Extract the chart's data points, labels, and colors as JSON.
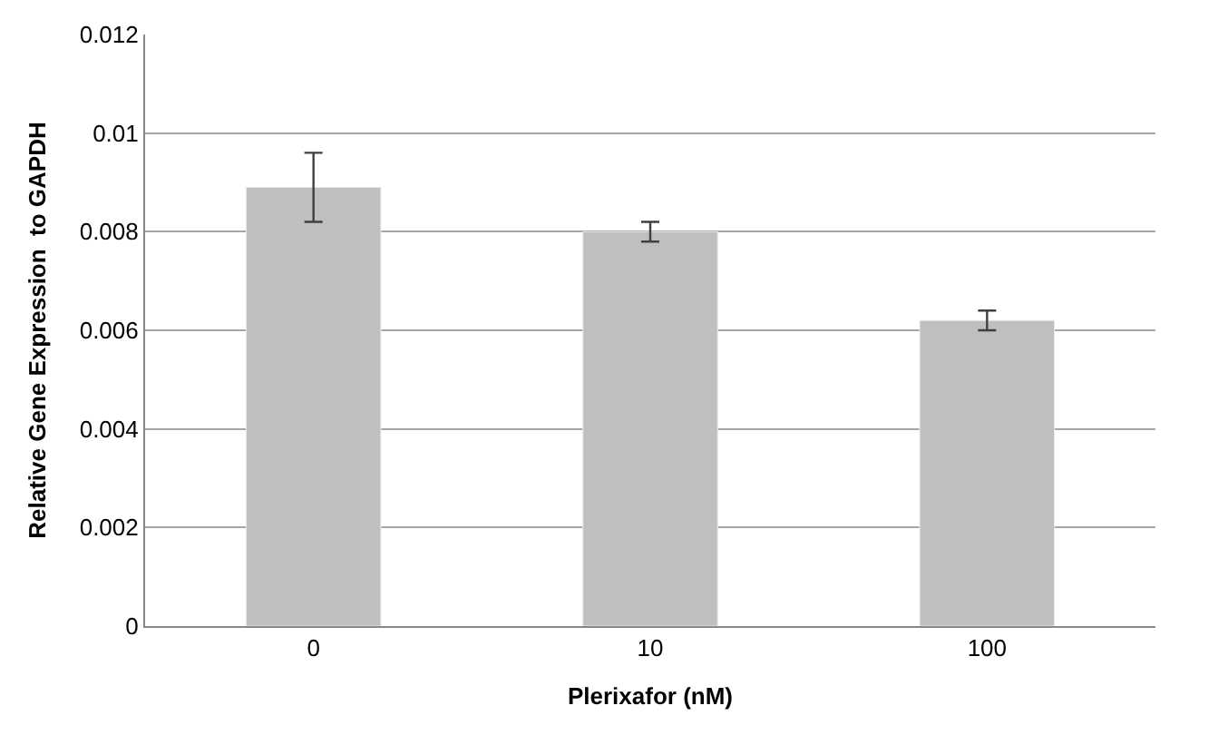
{
  "chart_data": {
    "type": "bar",
    "xlabel": "Plerixafor (nM)",
    "ylabel": "Relative Gene Expression  to GAPDH",
    "categories": [
      "0",
      "10",
      "100"
    ],
    "values": [
      0.0089,
      0.008,
      0.0062
    ],
    "errors": [
      0.0007,
      0.0002,
      0.0002
    ],
    "color": "#bfbfbf",
    "ylim": [
      0,
      0.012
    ],
    "yticks": [
      {
        "value": 0,
        "label": "0"
      },
      {
        "value": 0.002,
        "label": "0.002"
      },
      {
        "value": 0.004,
        "label": "0.004"
      },
      {
        "value": 0.006,
        "label": "0.006"
      },
      {
        "value": 0.008,
        "label": "0.008"
      },
      {
        "value": 0.01,
        "label": "0.01"
      },
      {
        "value": 0.012,
        "label": "0.012"
      }
    ],
    "grid": "y"
  }
}
